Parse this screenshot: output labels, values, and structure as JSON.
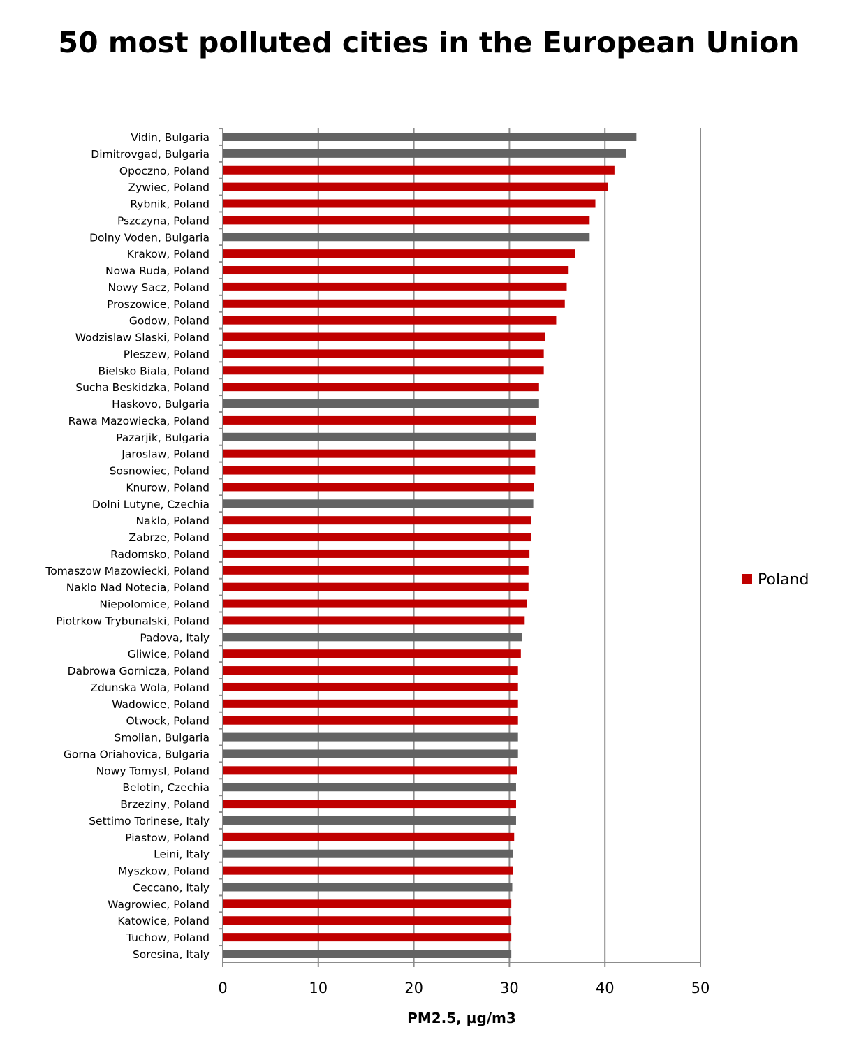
{
  "chart_data": {
    "type": "bar",
    "orientation": "horizontal",
    "title": "50 most polluted cities in the European Union",
    "xlabel": "PM2.5, µg/m3",
    "ylabel": "",
    "xlim": [
      0,
      50
    ],
    "xticks": [
      0,
      10,
      20,
      30,
      40,
      50
    ],
    "grid": true,
    "legend": {
      "position": "right",
      "entries": [
        {
          "name": "Poland",
          "color": "#C00000"
        }
      ]
    },
    "colors": {
      "Poland": "#C00000",
      "other": "#636363"
    },
    "categories": [
      "Vidin, Bulgaria",
      "Dimitrovgad, Bulgaria",
      "Opoczno, Poland",
      "Zywiec, Poland",
      "Rybnik, Poland",
      "Pszczyna, Poland",
      "Dolny Voden, Bulgaria",
      "Krakow, Poland",
      "Nowa Ruda, Poland",
      "Nowy Sacz, Poland",
      "Proszowice, Poland",
      "Godow, Poland",
      "Wodzislaw Slaski, Poland",
      "Pleszew, Poland",
      "Bielsko Biala, Poland",
      "Sucha Beskidzka, Poland",
      "Haskovo, Bulgaria",
      "Rawa Mazowiecka, Poland",
      "Pazarjik, Bulgaria",
      "Jaroslaw, Poland",
      "Sosnowiec, Poland",
      "Knurow, Poland",
      "Dolni Lutyne, Czechia",
      "Naklo, Poland",
      "Zabrze, Poland",
      "Radomsko, Poland",
      "Tomaszow Mazowiecki, Poland",
      "Naklo Nad Notecia, Poland",
      "Niepolomice, Poland",
      "Piotrkow Trybunalski, Poland",
      "Padova, Italy",
      "Gliwice, Poland",
      "Dabrowa Gornicza, Poland",
      "Zdunska Wola, Poland",
      "Wadowice, Poland",
      "Otwock, Poland",
      "Smolian, Bulgaria",
      "Gorna Oriahovica, Bulgaria",
      "Nowy Tomysl, Poland",
      "Belotin, Czechia",
      "Brzeziny, Poland",
      "Settimo Torinese, Italy",
      "Piastow, Poland",
      "Leini, Italy",
      "Myszkow, Poland",
      "Ceccano, Italy",
      "Wagrowiec, Poland",
      "Katowice, Poland",
      "Tuchow, Poland",
      "Soresina, Italy"
    ],
    "values": [
      43.3,
      42.2,
      41.0,
      40.3,
      39.0,
      38.4,
      38.4,
      36.9,
      36.2,
      36.0,
      35.8,
      34.9,
      33.7,
      33.6,
      33.6,
      33.1,
      33.1,
      32.8,
      32.8,
      32.7,
      32.7,
      32.6,
      32.5,
      32.3,
      32.3,
      32.1,
      32.0,
      32.0,
      31.8,
      31.6,
      31.3,
      31.2,
      30.9,
      30.9,
      30.9,
      30.9,
      30.9,
      30.9,
      30.8,
      30.7,
      30.7,
      30.7,
      30.5,
      30.4,
      30.4,
      30.3,
      30.2,
      30.2,
      30.2,
      30.2
    ]
  }
}
